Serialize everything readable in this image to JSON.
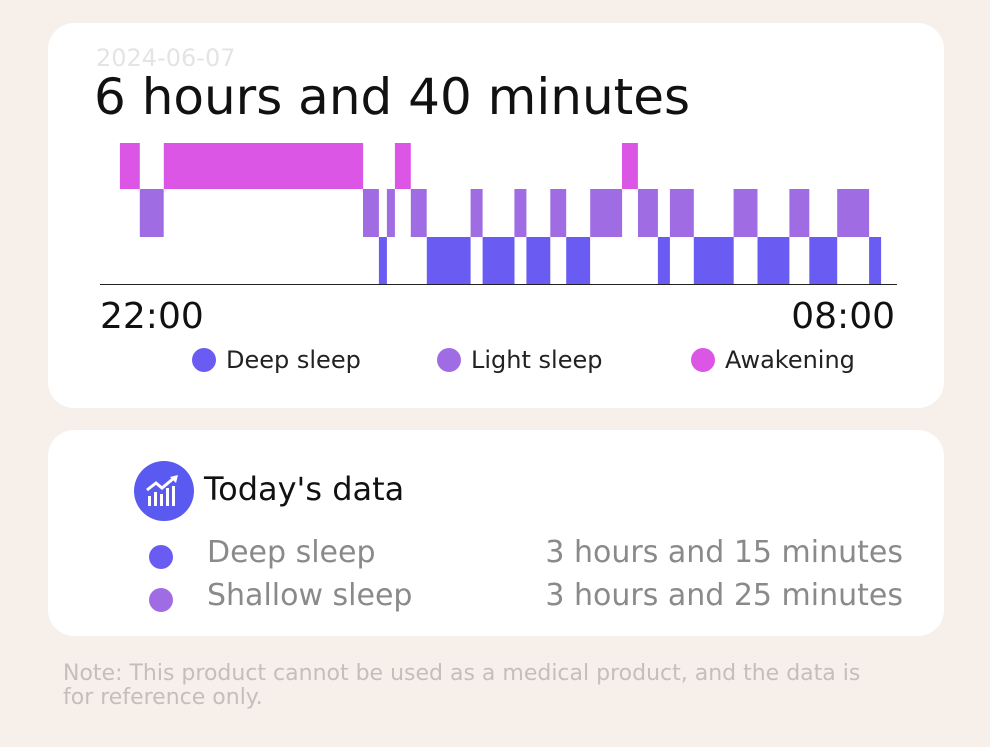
{
  "sleep_card": {
    "date": "2024-06-07",
    "total_duration": "6 hours and 40 minutes",
    "axis_start": "22:00",
    "axis_end": "08:00"
  },
  "legend": [
    {
      "label": "Deep sleep",
      "color": "#6a5cf2"
    },
    {
      "label": "Light sleep",
      "color": "#a06ce4"
    },
    {
      "label": "Awakening",
      "color": "#dc56e6"
    }
  ],
  "colors": {
    "deep": "#6a5cf2",
    "light": "#a06ce4",
    "awake": "#dc56e6",
    "icon_bg": "#5a5af0"
  },
  "chart_data": {
    "type": "bar",
    "x_range": [
      "22:00",
      "08:00"
    ],
    "levels": [
      "Deep sleep",
      "Light sleep",
      "Awakening"
    ],
    "segments": [
      {
        "stage": "Awakening",
        "start": 0.025,
        "end": 0.05
      },
      {
        "stage": "Light sleep",
        "start": 0.05,
        "end": 0.08
      },
      {
        "stage": "Awakening",
        "start": 0.08,
        "end": 0.33
      },
      {
        "stage": "Light sleep",
        "start": 0.33,
        "end": 0.35
      },
      {
        "stage": "Deep sleep",
        "start": 0.35,
        "end": 0.36
      },
      {
        "stage": "Light sleep",
        "start": 0.36,
        "end": 0.37
      },
      {
        "stage": "Awakening",
        "start": 0.37,
        "end": 0.39
      },
      {
        "stage": "Light sleep",
        "start": 0.39,
        "end": 0.41
      },
      {
        "stage": "Deep sleep",
        "start": 0.41,
        "end": 0.465
      },
      {
        "stage": "Light sleep",
        "start": 0.465,
        "end": 0.48
      },
      {
        "stage": "Deep sleep",
        "start": 0.48,
        "end": 0.52
      },
      {
        "stage": "Light sleep",
        "start": 0.52,
        "end": 0.535
      },
      {
        "stage": "Deep sleep",
        "start": 0.535,
        "end": 0.565
      },
      {
        "stage": "Light sleep",
        "start": 0.565,
        "end": 0.585
      },
      {
        "stage": "Deep sleep",
        "start": 0.585,
        "end": 0.615
      },
      {
        "stage": "Light sleep",
        "start": 0.615,
        "end": 0.655
      },
      {
        "stage": "Awakening",
        "start": 0.655,
        "end": 0.675
      },
      {
        "stage": "Light sleep",
        "start": 0.675,
        "end": 0.7
      },
      {
        "stage": "Deep sleep",
        "start": 0.7,
        "end": 0.715
      },
      {
        "stage": "Light sleep",
        "start": 0.715,
        "end": 0.745
      },
      {
        "stage": "Deep sleep",
        "start": 0.745,
        "end": 0.795
      },
      {
        "stage": "Light sleep",
        "start": 0.795,
        "end": 0.825
      },
      {
        "stage": "Deep sleep",
        "start": 0.825,
        "end": 0.865
      },
      {
        "stage": "Light sleep",
        "start": 0.865,
        "end": 0.89
      },
      {
        "stage": "Deep sleep",
        "start": 0.89,
        "end": 0.925
      },
      {
        "stage": "Light sleep",
        "start": 0.925,
        "end": 0.965
      },
      {
        "stage": "Deep sleep",
        "start": 0.965,
        "end": 0.98
      }
    ]
  },
  "today": {
    "title": "Today's data",
    "icon": "chart-trend-icon",
    "rows": [
      {
        "label": "Deep sleep",
        "value": "3 hours and 15 minutes",
        "color": "#6a5cf2"
      },
      {
        "label": "Shallow sleep",
        "value": "3 hours and 25 minutes",
        "color": "#a06ce4"
      }
    ]
  },
  "note": "Note: This product cannot be used as a medical product, and the data is for reference only."
}
